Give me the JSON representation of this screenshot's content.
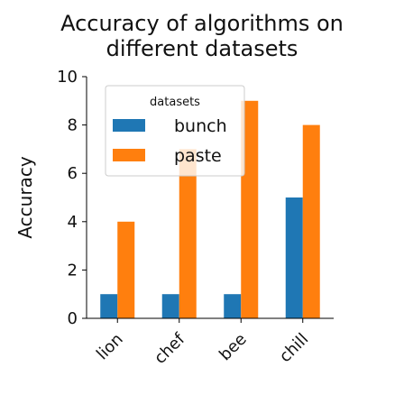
{
  "chart_data": {
    "type": "bar",
    "title": "Accuracy of algorithms on different datasets",
    "title_lines": [
      "Accuracy of algorithms on",
      "different datasets"
    ],
    "categories": [
      "lion",
      "chef",
      "bee",
      "chill"
    ],
    "series": [
      {
        "name": "bunch",
        "values": [
          1,
          1,
          1,
          5
        ],
        "color": "#1f77b4"
      },
      {
        "name": "paste",
        "values": [
          4,
          7,
          9,
          8
        ],
        "color": "#ff7f0e"
      }
    ],
    "xlabel": "",
    "ylabel": "Accuracy",
    "ylim": [
      0,
      10
    ],
    "yticks": [
      0,
      2,
      4,
      6,
      8,
      10
    ],
    "grid": false,
    "legend": {
      "title": "datasets",
      "position": "top-center"
    }
  }
}
